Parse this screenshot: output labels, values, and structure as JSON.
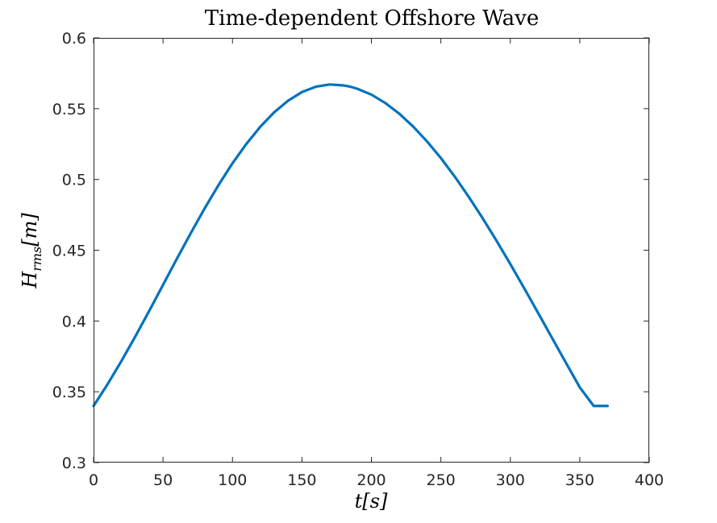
{
  "chart_data": {
    "type": "line",
    "title": "Time-dependent Offshore Wave",
    "xlabel": "t[s]",
    "ylabel": "H_rms[m]",
    "ylabel_main": "H",
    "ylabel_sub": "rms",
    "ylabel_unit": "[m]",
    "xlim": [
      0,
      400
    ],
    "ylim": [
      0.3,
      0.6
    ],
    "xticks": [
      0,
      50,
      100,
      150,
      200,
      250,
      300,
      350,
      400
    ],
    "yticks": [
      0.3,
      0.35,
      0.4,
      0.45,
      0.5,
      0.55,
      0.6
    ],
    "xtick_labels": [
      "0",
      "50",
      "100",
      "150",
      "200",
      "250",
      "300",
      "350",
      "400"
    ],
    "ytick_labels": [
      "0.3",
      "0.35",
      "0.4",
      "0.45",
      "0.5",
      "0.55",
      "0.6"
    ],
    "grid": false,
    "line_color": "#0072BD",
    "series": [
      {
        "x": [
          0,
          10,
          20,
          30,
          40,
          50,
          60,
          70,
          80,
          90,
          100,
          110,
          120,
          130,
          140,
          150,
          160,
          170,
          180,
          185,
          190,
          200,
          210,
          220,
          230,
          240,
          250,
          260,
          270,
          280,
          290,
          300,
          310,
          320,
          330,
          340,
          350,
          360,
          370
        ],
        "values": [
          0.34,
          0.3552,
          0.3716,
          0.389,
          0.407,
          0.4255,
          0.444,
          0.4621,
          0.4796,
          0.4961,
          0.5114,
          0.5251,
          0.5372,
          0.5474,
          0.5556,
          0.5617,
          0.5655,
          0.5671,
          0.5664,
          0.5655,
          0.564,
          0.5599,
          0.554,
          0.5465,
          0.5374,
          0.5269,
          0.5151,
          0.502,
          0.4878,
          0.4727,
          0.4568,
          0.4402,
          0.4231,
          0.4057,
          0.3881,
          0.3705,
          0.3531,
          0.34,
          0.34
        ]
      }
    ]
  }
}
